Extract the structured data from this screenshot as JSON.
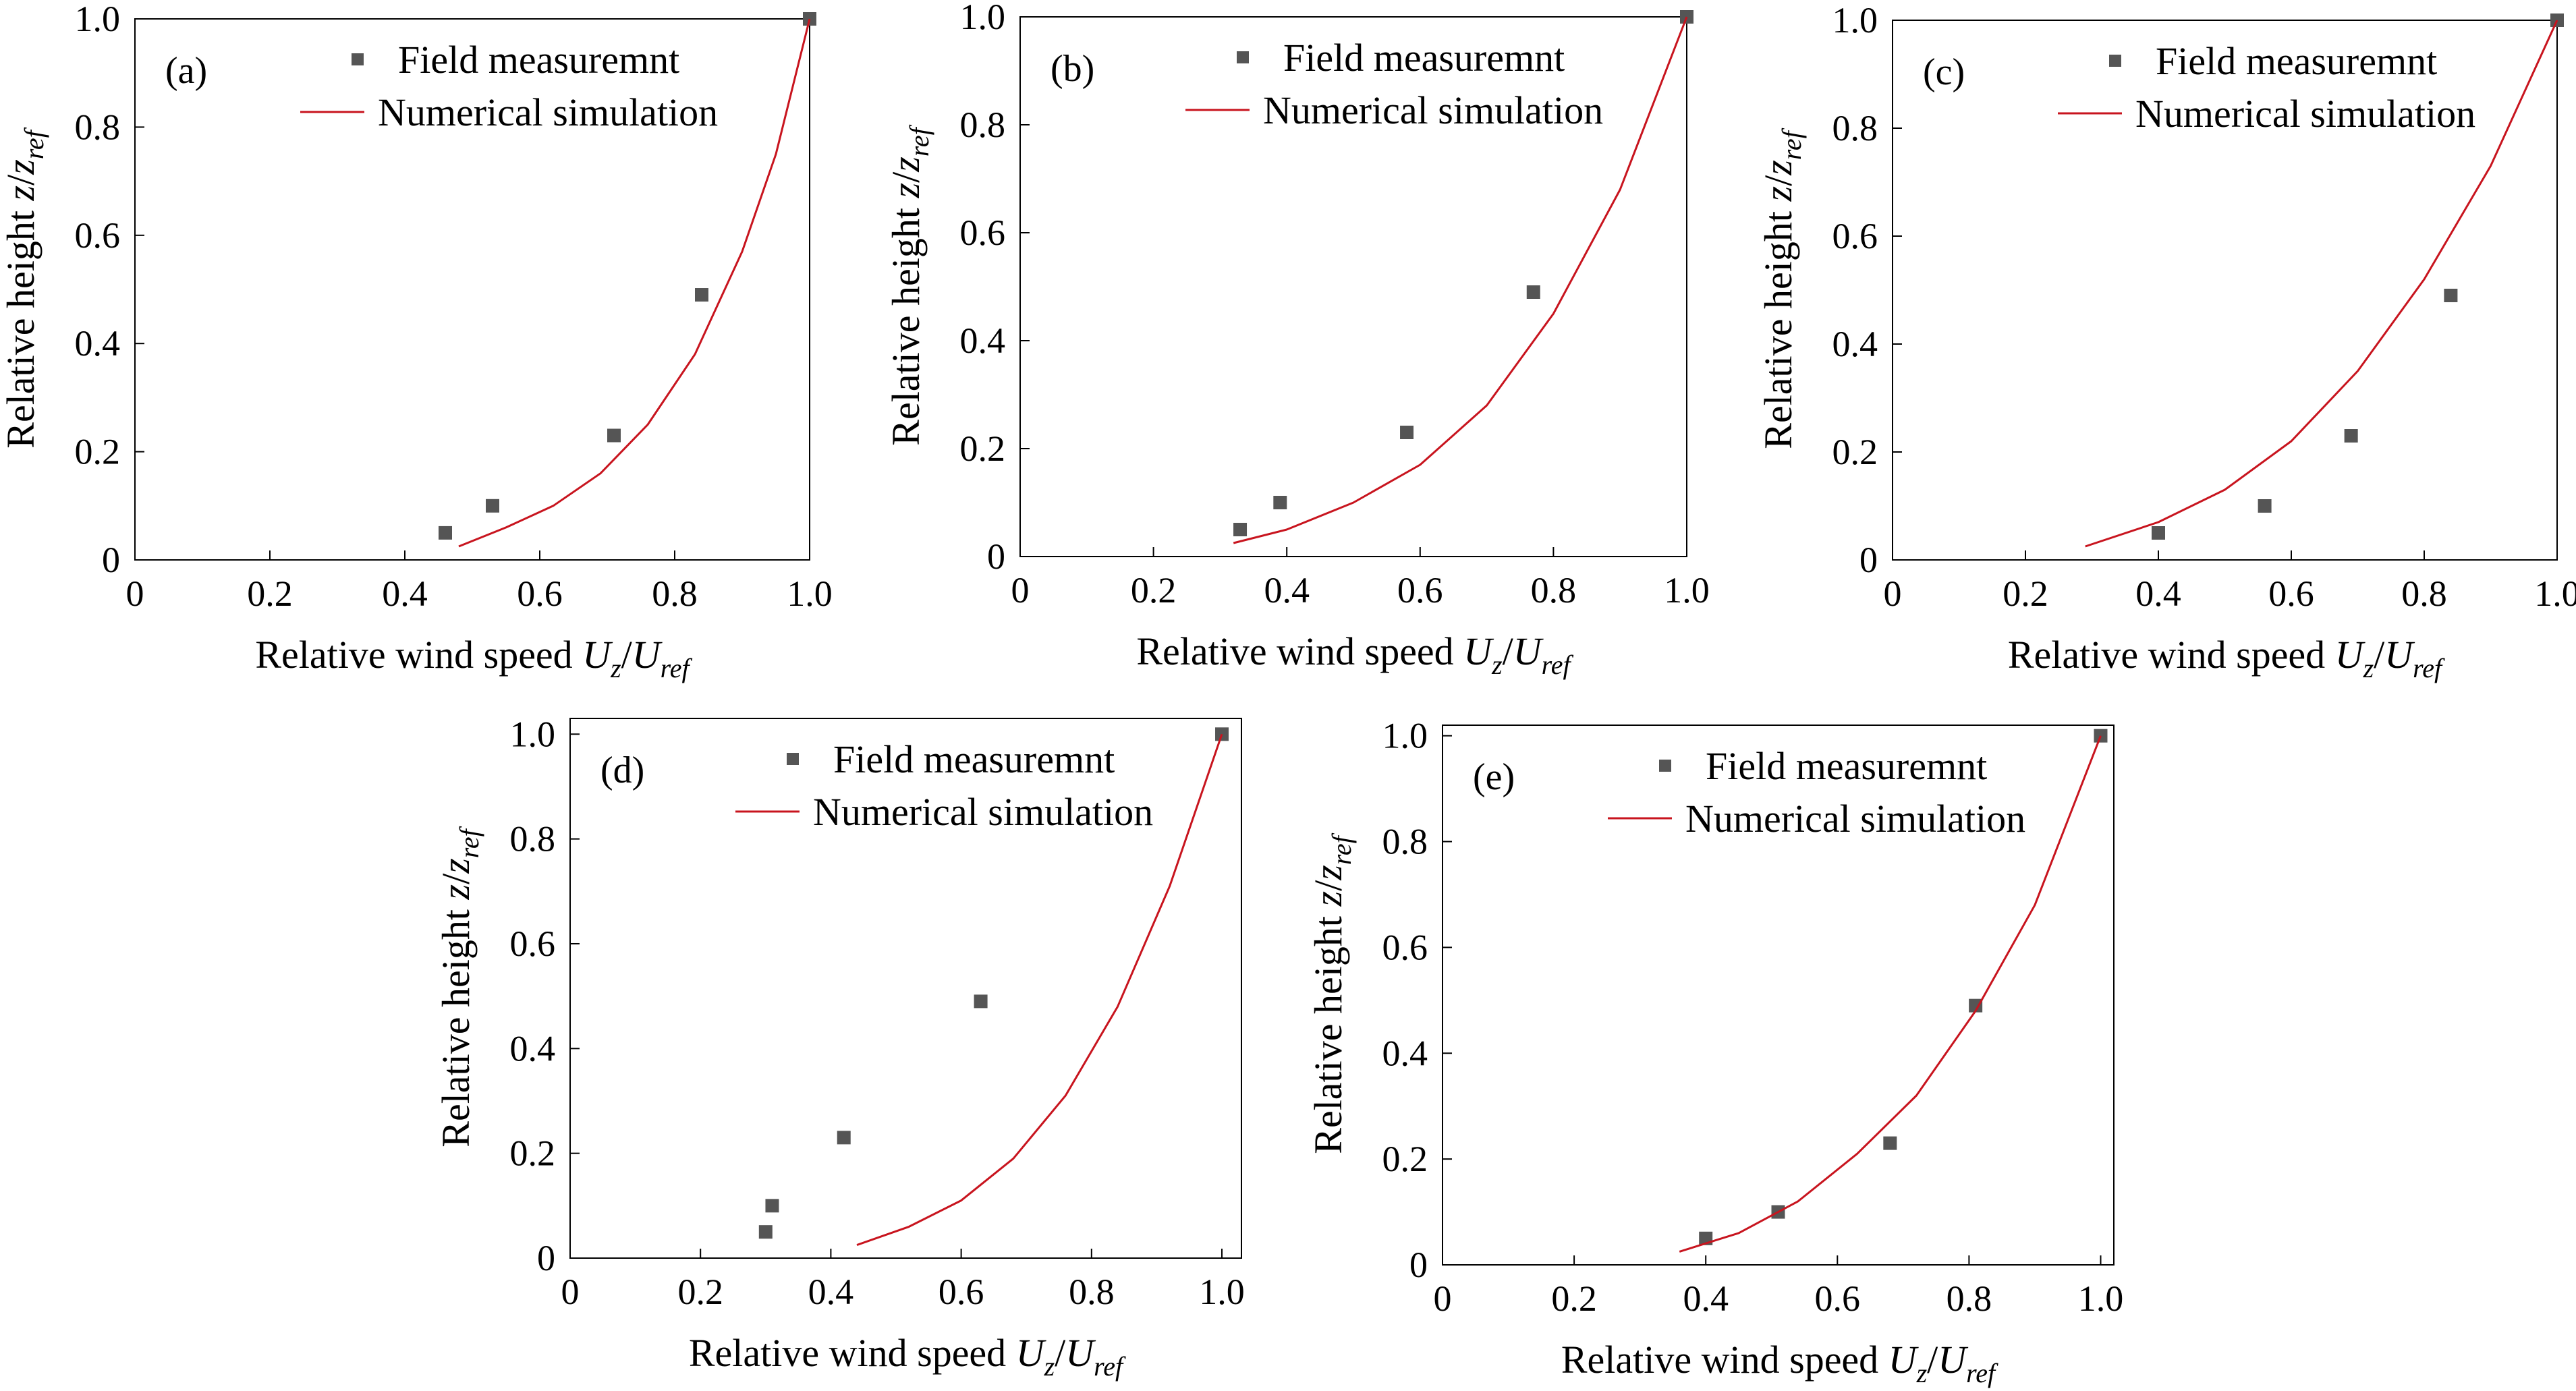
{
  "legend": {
    "marker_label": "Field measuremnt",
    "line_label": "Numerical simulation"
  },
  "axis_text": {
    "x_prefix": "Relative wind speed ",
    "x_var": "U",
    "x_sub": "z",
    "x_slash": "/",
    "x_ref_var": "U",
    "x_ref_sub": "ref",
    "y_prefix": "Relative height ",
    "y_var": "z",
    "y_slash": "/",
    "y_ref_var": "z",
    "y_ref_sub": "ref"
  },
  "colors": {
    "marker": "#555555",
    "line": "#c8141e",
    "axis": "#000000"
  },
  "chart_data": [
    {
      "type": "scatter",
      "panel_label": "(a)",
      "xlim": [
        0,
        1.0
      ],
      "ylim": [
        0,
        1.0
      ],
      "xticks": [
        "0",
        "0.2",
        "0.4",
        "0.6",
        "0.8",
        "1.0"
      ],
      "yticks": [
        "0",
        "0.2",
        "0.4",
        "0.6",
        "0.8",
        "1.0"
      ],
      "legend_position": "top-left",
      "series": [
        {
          "name": "Field measuremnt",
          "kind": "marker",
          "x": [
            0.46,
            0.53,
            0.71,
            0.84,
            1.0
          ],
          "y": [
            0.05,
            0.1,
            0.23,
            0.49,
            1.0
          ]
        },
        {
          "name": "Numerical simulation",
          "kind": "line",
          "x": [
            0.48,
            0.55,
            0.62,
            0.69,
            0.76,
            0.83,
            0.9,
            0.95,
            1.0
          ],
          "y": [
            0.025,
            0.06,
            0.1,
            0.16,
            0.25,
            0.38,
            0.57,
            0.75,
            1.0
          ]
        }
      ]
    },
    {
      "type": "scatter",
      "panel_label": "(b)",
      "xlim": [
        0,
        1.0
      ],
      "ylim": [
        0,
        1.0
      ],
      "xticks": [
        "0",
        "0.2",
        "0.4",
        "0.6",
        "0.8",
        "1.0"
      ],
      "yticks": [
        "0",
        "0.2",
        "0.4",
        "0.6",
        "0.8",
        "1.0"
      ],
      "legend_position": "top-left",
      "series": [
        {
          "name": "Field measuremnt",
          "kind": "marker",
          "x": [
            0.33,
            0.39,
            0.58,
            0.77,
            1.0
          ],
          "y": [
            0.05,
            0.1,
            0.23,
            0.49,
            1.0
          ]
        },
        {
          "name": "Numerical simulation",
          "kind": "line",
          "x": [
            0.32,
            0.4,
            0.5,
            0.6,
            0.7,
            0.8,
            0.9,
            1.0
          ],
          "y": [
            0.025,
            0.05,
            0.1,
            0.17,
            0.28,
            0.45,
            0.68,
            1.0
          ]
        }
      ]
    },
    {
      "type": "scatter",
      "panel_label": "(c)",
      "xlim": [
        0,
        1.0
      ],
      "ylim": [
        0,
        1.0
      ],
      "xticks": [
        "0",
        "0.2",
        "0.4",
        "0.6",
        "0.8",
        "1.0"
      ],
      "yticks": [
        "0",
        "0.2",
        "0.4",
        "0.6",
        "0.8",
        "1.0"
      ],
      "legend_position": "top-left",
      "series": [
        {
          "name": "Field measuremnt",
          "kind": "marker",
          "x": [
            0.4,
            0.56,
            0.69,
            0.84,
            1.0
          ],
          "y": [
            0.05,
            0.1,
            0.23,
            0.49,
            1.0
          ]
        },
        {
          "name": "Numerical simulation",
          "kind": "line",
          "x": [
            0.29,
            0.4,
            0.5,
            0.6,
            0.7,
            0.8,
            0.9,
            1.0
          ],
          "y": [
            0.025,
            0.07,
            0.13,
            0.22,
            0.35,
            0.52,
            0.73,
            1.0
          ]
        }
      ]
    },
    {
      "type": "scatter",
      "panel_label": "(d)",
      "xlim": [
        0,
        1.03
      ],
      "ylim": [
        0,
        1.03
      ],
      "xticks": [
        "0",
        "0.2",
        "0.4",
        "0.6",
        "0.8",
        "1.0"
      ],
      "yticks": [
        "0",
        "0.2",
        "0.4",
        "0.6",
        "0.8",
        "1.0"
      ],
      "legend_position": "top-left",
      "series": [
        {
          "name": "Field measuremnt",
          "kind": "marker",
          "x": [
            0.3,
            0.31,
            0.42,
            0.63,
            1.0
          ],
          "y": [
            0.05,
            0.1,
            0.23,
            0.49,
            1.0
          ]
        },
        {
          "name": "Numerical simulation",
          "kind": "line",
          "x": [
            0.44,
            0.52,
            0.6,
            0.68,
            0.76,
            0.84,
            0.92,
            1.0
          ],
          "y": [
            0.025,
            0.06,
            0.11,
            0.19,
            0.31,
            0.48,
            0.71,
            1.0
          ]
        }
      ]
    },
    {
      "type": "scatter",
      "panel_label": "(e)",
      "xlim": [
        0,
        1.02
      ],
      "ylim": [
        0,
        1.02
      ],
      "xticks": [
        "0",
        "0.2",
        "0.4",
        "0.6",
        "0.8",
        "1.0"
      ],
      "yticks": [
        "0",
        "0.2",
        "0.4",
        "0.6",
        "0.8",
        "1.0"
      ],
      "legend_position": "top-left",
      "series": [
        {
          "name": "Field measuremnt",
          "kind": "marker",
          "x": [
            0.4,
            0.51,
            0.68,
            0.81,
            1.0
          ],
          "y": [
            0.05,
            0.1,
            0.23,
            0.49,
            1.0
          ]
        },
        {
          "name": "Numerical simulation",
          "kind": "line",
          "x": [
            0.36,
            0.45,
            0.54,
            0.63,
            0.72,
            0.81,
            0.9,
            1.0
          ],
          "y": [
            0.025,
            0.06,
            0.12,
            0.21,
            0.32,
            0.48,
            0.68,
            1.0
          ]
        }
      ]
    }
  ]
}
